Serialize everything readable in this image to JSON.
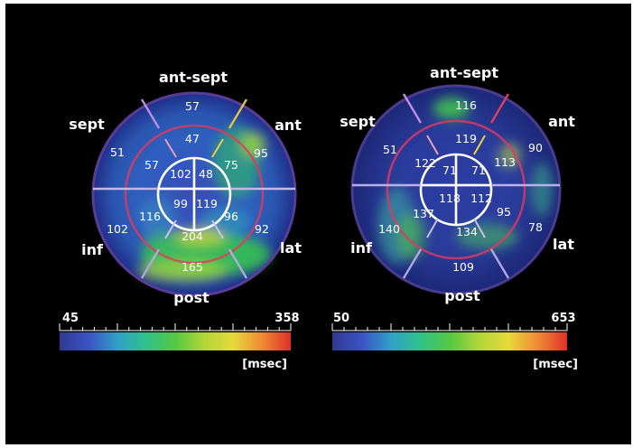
{
  "colors": {
    "background": "#000000",
    "page": "#ffffff",
    "scale_gradient": [
      "#303a92",
      "#3b52c4",
      "#2fa0c8",
      "#2fc28a",
      "#54c840",
      "#b2d638",
      "#e6da3a",
      "#f08a32",
      "#e0302a"
    ]
  },
  "plots": [
    {
      "id": "left",
      "labels": {
        "top": "ant-sept",
        "upper_left": "sept",
        "upper_right": "ant",
        "lower_left": "inf",
        "lower_right": "lat",
        "bottom": "post"
      },
      "segments": {
        "outer": [
          "57",
          "95",
          "92",
          "165",
          "102",
          "51"
        ],
        "middle": [
          "47",
          "75",
          "96",
          "204",
          "116",
          "57"
        ],
        "inner": [
          "102",
          "48",
          "119",
          "99"
        ]
      },
      "scale": {
        "min": "45",
        "max": "358",
        "unit": "[msec]"
      }
    },
    {
      "id": "right",
      "labels": {
        "top": "ant-sept",
        "upper_left": "sept",
        "upper_right": "ant",
        "lower_left": "inf",
        "lower_right": "lat",
        "bottom": "post"
      },
      "segments": {
        "outer": [
          "116",
          "90",
          "78",
          "109",
          "140",
          "51"
        ],
        "middle": [
          "119",
          "113",
          "95",
          "134",
          "137",
          "122"
        ],
        "inner": [
          "71",
          "71",
          "112",
          "118"
        ]
      },
      "scale": {
        "min": "50",
        "max": "653",
        "unit": "[msec]"
      }
    }
  ]
}
